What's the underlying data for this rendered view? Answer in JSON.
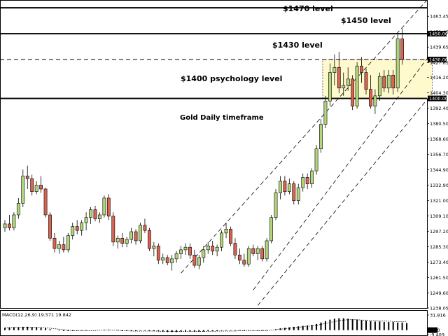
{
  "chart_data": {
    "type": "candlestick",
    "annotations": {
      "title": "Gold Daily timeframe",
      "level_1470": "$1470 level",
      "level_1450": "$1450 level",
      "level_1430": "$1430 level",
      "level_1400": "$1400 psychology level"
    },
    "price_axis_ticks": [
      "1463.45",
      "1451.45",
      "1439.65",
      "1427.65",
      "1416.20",
      "1404.30",
      "1392.40",
      "1380.50",
      "1368.60",
      "1356.70",
      "1344.90",
      "1332.90",
      "1321.00",
      "1309.10",
      "1297.20",
      "1285.30",
      "1273.40",
      "1261.50",
      "1249.60",
      "1238.05"
    ],
    "ylim": [
      1238.05,
      1475.5
    ],
    "levels": [
      {
        "price": 1470.0,
        "style": "solid",
        "tag": ""
      },
      {
        "price": 1450.0,
        "style": "solid",
        "tag": "1450.00"
      },
      {
        "price": 1430.0,
        "style": "dashed",
        "tag": "1430.00"
      },
      {
        "price": 1400.0,
        "style": "solid",
        "tag": "1400.00"
      }
    ],
    "range_box": {
      "start_index": 71,
      "end_index": 94,
      "top": 1430.0,
      "bottom": 1400.0,
      "color": "#fffacd"
    },
    "colors": {
      "bull": "#b3d67a",
      "bear": "#d9644f",
      "outline": "#000000",
      "tag_bg": "#000000",
      "tag_text": "#ffffff"
    },
    "candles": [
      {
        "o": 1300,
        "h": 1306,
        "l": 1297,
        "c": 1303
      },
      {
        "o": 1303,
        "h": 1310,
        "l": 1298,
        "c": 1300
      },
      {
        "o": 1300,
        "h": 1312,
        "l": 1298,
        "c": 1310
      },
      {
        "o": 1310,
        "h": 1323,
        "l": 1307,
        "c": 1319
      },
      {
        "o": 1319,
        "h": 1345,
        "l": 1316,
        "c": 1340
      },
      {
        "o": 1340,
        "h": 1348,
        "l": 1330,
        "c": 1338
      },
      {
        "o": 1338,
        "h": 1341,
        "l": 1325,
        "c": 1328
      },
      {
        "o": 1328,
        "h": 1336,
        "l": 1326,
        "c": 1333
      },
      {
        "o": 1333,
        "h": 1340,
        "l": 1327,
        "c": 1330
      },
      {
        "o": 1330,
        "h": 1331,
        "l": 1308,
        "c": 1310
      },
      {
        "o": 1310,
        "h": 1312,
        "l": 1290,
        "c": 1292
      },
      {
        "o": 1292,
        "h": 1296,
        "l": 1281,
        "c": 1284
      },
      {
        "o": 1284,
        "h": 1290,
        "l": 1280,
        "c": 1287
      },
      {
        "o": 1287,
        "h": 1293,
        "l": 1281,
        "c": 1283
      },
      {
        "o": 1283,
        "h": 1296,
        "l": 1281,
        "c": 1294
      },
      {
        "o": 1294,
        "h": 1304,
        "l": 1291,
        "c": 1301
      },
      {
        "o": 1301,
        "h": 1306,
        "l": 1295,
        "c": 1298
      },
      {
        "o": 1298,
        "h": 1306,
        "l": 1294,
        "c": 1304
      },
      {
        "o": 1304,
        "h": 1312,
        "l": 1298,
        "c": 1308
      },
      {
        "o": 1308,
        "h": 1316,
        "l": 1303,
        "c": 1314
      },
      {
        "o": 1314,
        "h": 1317,
        "l": 1305,
        "c": 1307
      },
      {
        "o": 1307,
        "h": 1312,
        "l": 1304,
        "c": 1310
      },
      {
        "o": 1310,
        "h": 1325,
        "l": 1308,
        "c": 1323
      },
      {
        "o": 1323,
        "h": 1326,
        "l": 1306,
        "c": 1309
      },
      {
        "o": 1309,
        "h": 1312,
        "l": 1286,
        "c": 1289
      },
      {
        "o": 1289,
        "h": 1294,
        "l": 1284,
        "c": 1292
      },
      {
        "o": 1292,
        "h": 1296,
        "l": 1285,
        "c": 1288
      },
      {
        "o": 1288,
        "h": 1293,
        "l": 1285,
        "c": 1291
      },
      {
        "o": 1291,
        "h": 1300,
        "l": 1288,
        "c": 1297
      },
      {
        "o": 1297,
        "h": 1299,
        "l": 1287,
        "c": 1290
      },
      {
        "o": 1290,
        "h": 1304,
        "l": 1288,
        "c": 1302
      },
      {
        "o": 1302,
        "h": 1307,
        "l": 1296,
        "c": 1298
      },
      {
        "o": 1298,
        "h": 1300,
        "l": 1282,
        "c": 1284
      },
      {
        "o": 1284,
        "h": 1289,
        "l": 1278,
        "c": 1286
      },
      {
        "o": 1286,
        "h": 1288,
        "l": 1272,
        "c": 1275
      },
      {
        "o": 1275,
        "h": 1280,
        "l": 1272,
        "c": 1277
      },
      {
        "o": 1277,
        "h": 1279,
        "l": 1271,
        "c": 1273
      },
      {
        "o": 1273,
        "h": 1279,
        "l": 1267,
        "c": 1276
      },
      {
        "o": 1276,
        "h": 1282,
        "l": 1273,
        "c": 1280
      },
      {
        "o": 1280,
        "h": 1286,
        "l": 1276,
        "c": 1283
      },
      {
        "o": 1283,
        "h": 1288,
        "l": 1279,
        "c": 1285
      },
      {
        "o": 1285,
        "h": 1288,
        "l": 1276,
        "c": 1279
      },
      {
        "o": 1279,
        "h": 1283,
        "l": 1269,
        "c": 1271
      },
      {
        "o": 1271,
        "h": 1279,
        "l": 1268,
        "c": 1277
      },
      {
        "o": 1277,
        "h": 1286,
        "l": 1273,
        "c": 1283
      },
      {
        "o": 1283,
        "h": 1289,
        "l": 1280,
        "c": 1286
      },
      {
        "o": 1286,
        "h": 1290,
        "l": 1279,
        "c": 1282
      },
      {
        "o": 1282,
        "h": 1287,
        "l": 1278,
        "c": 1285
      },
      {
        "o": 1285,
        "h": 1298,
        "l": 1282,
        "c": 1296
      },
      {
        "o": 1296,
        "h": 1304,
        "l": 1292,
        "c": 1299
      },
      {
        "o": 1299,
        "h": 1301,
        "l": 1286,
        "c": 1288
      },
      {
        "o": 1288,
        "h": 1292,
        "l": 1276,
        "c": 1279
      },
      {
        "o": 1279,
        "h": 1284,
        "l": 1272,
        "c": 1275
      },
      {
        "o": 1275,
        "h": 1280,
        "l": 1270,
        "c": 1272
      },
      {
        "o": 1272,
        "h": 1286,
        "l": 1270,
        "c": 1284
      },
      {
        "o": 1284,
        "h": 1287,
        "l": 1278,
        "c": 1280
      },
      {
        "o": 1280,
        "h": 1286,
        "l": 1275,
        "c": 1284
      },
      {
        "o": 1284,
        "h": 1286,
        "l": 1274,
        "c": 1276
      },
      {
        "o": 1276,
        "h": 1292,
        "l": 1274,
        "c": 1290
      },
      {
        "o": 1290,
        "h": 1310,
        "l": 1288,
        "c": 1308
      },
      {
        "o": 1308,
        "h": 1330,
        "l": 1306,
        "c": 1327
      },
      {
        "o": 1327,
        "h": 1340,
        "l": 1322,
        "c": 1336
      },
      {
        "o": 1336,
        "h": 1340,
        "l": 1325,
        "c": 1328
      },
      {
        "o": 1328,
        "h": 1338,
        "l": 1326,
        "c": 1334
      },
      {
        "o": 1334,
        "h": 1336,
        "l": 1318,
        "c": 1321
      },
      {
        "o": 1321,
        "h": 1334,
        "l": 1318,
        "c": 1331
      },
      {
        "o": 1331,
        "h": 1342,
        "l": 1328,
        "c": 1339
      },
      {
        "o": 1339,
        "h": 1342,
        "l": 1330,
        "c": 1334
      },
      {
        "o": 1334,
        "h": 1346,
        "l": 1331,
        "c": 1344
      },
      {
        "o": 1344,
        "h": 1364,
        "l": 1341,
        "c": 1361
      },
      {
        "o": 1361,
        "h": 1384,
        "l": 1358,
        "c": 1380
      },
      {
        "o": 1380,
        "h": 1402,
        "l": 1377,
        "c": 1398
      },
      {
        "o": 1398,
        "h": 1427,
        "l": 1394,
        "c": 1420
      },
      {
        "o": 1420,
        "h": 1434,
        "l": 1410,
        "c": 1424
      },
      {
        "o": 1424,
        "h": 1436,
        "l": 1404,
        "c": 1408
      },
      {
        "o": 1408,
        "h": 1420,
        "l": 1402,
        "c": 1410
      },
      {
        "o": 1410,
        "h": 1424,
        "l": 1406,
        "c": 1415
      },
      {
        "o": 1415,
        "h": 1418,
        "l": 1391,
        "c": 1394
      },
      {
        "o": 1394,
        "h": 1428,
        "l": 1392,
        "c": 1425
      },
      {
        "o": 1425,
        "h": 1432,
        "l": 1412,
        "c": 1420
      },
      {
        "o": 1420,
        "h": 1423,
        "l": 1403,
        "c": 1407
      },
      {
        "o": 1407,
        "h": 1418,
        "l": 1392,
        "c": 1394
      },
      {
        "o": 1394,
        "h": 1407,
        "l": 1388,
        "c": 1402
      },
      {
        "o": 1402,
        "h": 1420,
        "l": 1398,
        "c": 1417
      },
      {
        "o": 1417,
        "h": 1422,
        "l": 1405,
        "c": 1408
      },
      {
        "o": 1408,
        "h": 1422,
        "l": 1404,
        "c": 1418
      },
      {
        "o": 1418,
        "h": 1422,
        "l": 1403,
        "c": 1408
      },
      {
        "o": 1408,
        "h": 1450,
        "l": 1405,
        "c": 1446
      },
      {
        "o": 1446,
        "h": 1454,
        "l": 1426,
        "c": 1430
      }
    ],
    "macd": {
      "label": "MACD(12,26,9) 19.571 19.842",
      "ticks": [
        "31.816",
        "0.00",
        "-9.409"
      ],
      "ylim": [
        -9.409,
        31.816
      ],
      "bar_color": "#000000",
      "signal_style": "dotted",
      "histogram": [
        5,
        6,
        6,
        6,
        7,
        7,
        6,
        6,
        5,
        4,
        2,
        0,
        -1,
        -2,
        -2,
        -2,
        -1,
        -1,
        -1,
        0,
        0,
        0,
        1,
        1,
        0,
        -1,
        -2,
        -2,
        -2,
        -2,
        -1,
        -1,
        -2,
        -2,
        -3,
        -3,
        -4,
        -4,
        -4,
        -3,
        -3,
        -3,
        -3,
        -3,
        -3,
        -2,
        -2,
        -2,
        -1,
        -1,
        -1,
        -1,
        -1,
        -2,
        -1,
        -1,
        -1,
        -1,
        -1,
        0,
        2,
        4,
        5,
        6,
        7,
        8,
        9,
        10,
        11,
        13,
        16,
        19,
        22,
        24,
        25,
        25,
        24,
        23,
        22,
        21,
        20,
        19,
        18,
        18,
        17,
        17,
        17,
        16,
        16,
        15
      ],
      "signal": [
        5,
        5,
        6,
        6,
        6,
        6,
        6,
        6,
        6,
        5,
        4,
        3,
        2,
        1,
        0,
        -1,
        -1,
        -1,
        -1,
        -1,
        -1,
        0,
        0,
        0,
        0,
        0,
        -1,
        -1,
        -2,
        -2,
        -2,
        -2,
        -2,
        -2,
        -2,
        -3,
        -3,
        -3,
        -3,
        -3,
        -3,
        -3,
        -3,
        -3,
        -3,
        -3,
        -3,
        -2,
        -2,
        -2,
        -2,
        -2,
        -1,
        -1,
        -1,
        -1,
        -1,
        -1,
        -1,
        0,
        1,
        2,
        3,
        4,
        5,
        6,
        7,
        8,
        9,
        10,
        12,
        14,
        16,
        18,
        20,
        21,
        22,
        22,
        22,
        21,
        21,
        20,
        20,
        19,
        19,
        19,
        18,
        18,
        18,
        18
      ]
    }
  }
}
